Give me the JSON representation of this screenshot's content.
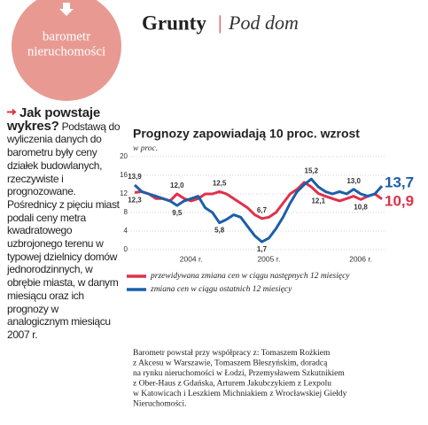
{
  "badge": {
    "lines": [
      "barometr",
      "nieruchomości"
    ]
  },
  "header": {
    "title": "Grunty",
    "separator": "|",
    "subtitle": "Pod dom"
  },
  "sidebar": {
    "heading": "Jak powstaje wykres?",
    "body": "Podstawą do wyliczenia danych do barometru były ceny działek budowlanych, rzeczywiste i prognozowane. Pośrednicy z pięciu miast podali ceny metra kwadratowego uzbrojonego terenu w typowej dzielnicy domów jednorodzinnych, w obrębie miasta, w danym miesiącu oraz ich prognozy w analogicznym miesiącu 2007 r."
  },
  "chart_data": {
    "type": "line",
    "title": "Prognozy zapowiadają 10 proc. wzrost",
    "y_label": "w proc.",
    "categories": [
      null,
      null,
      null,
      null,
      null,
      null,
      null,
      null,
      "2004 r.",
      null,
      null,
      null,
      null,
      null,
      null,
      null,
      null,
      null,
      null,
      "2005 r.",
      null,
      null,
      null,
      null,
      null,
      null,
      null,
      null,
      null,
      null,
      null,
      null,
      "2006 r.",
      null,
      null,
      null
    ],
    "series": [
      {
        "name": "przewidywana zmiana cen w ciągu następnych 12 miesięcy",
        "color": "#e0304a",
        "values": [
          12.3,
          12.5,
          12.0,
          11.0,
          11.0,
          10.5,
          12.0,
          11.0,
          10.5,
          11.0,
          12.0,
          12.0,
          12.5,
          12.0,
          11.0,
          10.0,
          9.0,
          7.5,
          6.7,
          7.0,
          8.0,
          10.0,
          12.0,
          13.0,
          14.5,
          13.5,
          12.1,
          11.5,
          11.0,
          10.5,
          11.0,
          11.5,
          10.8,
          11.5,
          12.0,
          10.9
        ],
        "value_labels": [
          "12,3",
          null,
          null,
          null,
          null,
          null,
          "12,0",
          null,
          null,
          null,
          null,
          null,
          "12,5",
          null,
          null,
          null,
          null,
          null,
          "6,7",
          null,
          null,
          null,
          null,
          null,
          null,
          null,
          "12,1",
          null,
          null,
          null,
          null,
          null,
          "10,8",
          null,
          null,
          "10,9"
        ]
      },
      {
        "name": "zmiana cen w ciągu ostatnich 12 miesięcy",
        "color": "#1c5fa8",
        "values": [
          13.9,
          12.5,
          12.0,
          11.5,
          11.0,
          10.5,
          9.5,
          10.5,
          11.0,
          11.5,
          9.0,
          8.0,
          5.8,
          6.5,
          7.5,
          7.0,
          5.0,
          3.0,
          1.7,
          2.5,
          4.5,
          7.0,
          10.0,
          12.5,
          14.0,
          15.2,
          13.5,
          12.5,
          12.0,
          12.5,
          12.0,
          13.0,
          12.0,
          11.5,
          12.0,
          13.7
        ],
        "value_labels": [
          "13,9",
          null,
          null,
          null,
          null,
          null,
          "9,5",
          null,
          null,
          null,
          null,
          null,
          "5,8",
          null,
          null,
          null,
          null,
          null,
          "1,7",
          null,
          null,
          null,
          null,
          null,
          null,
          "15,2",
          null,
          null,
          null,
          null,
          null,
          "13,0",
          null,
          null,
          null,
          "13,7"
        ]
      }
    ],
    "ylim": [
      0,
      20
    ],
    "yticks": [
      0,
      4,
      8,
      12,
      16,
      20
    ],
    "grid": true
  },
  "footer": {
    "lines": [
      "Barometr powstał przy współpracy z: Tomaszem Rożkiem",
      "z Akcesu w Warszawie, Tomaszem Błeszyńskim, doradcą",
      "na rynku nieruchomości w Łodzi, Przemysławem Szkutnikiem",
      "z Ober-Haus z Gdańska, Arturem Jakubczykiem z Lexpolu",
      "w Katowicach i Leszkiem Michniakiem z Wrocławskiej Giełdy",
      "Nieruchomości."
    ]
  }
}
